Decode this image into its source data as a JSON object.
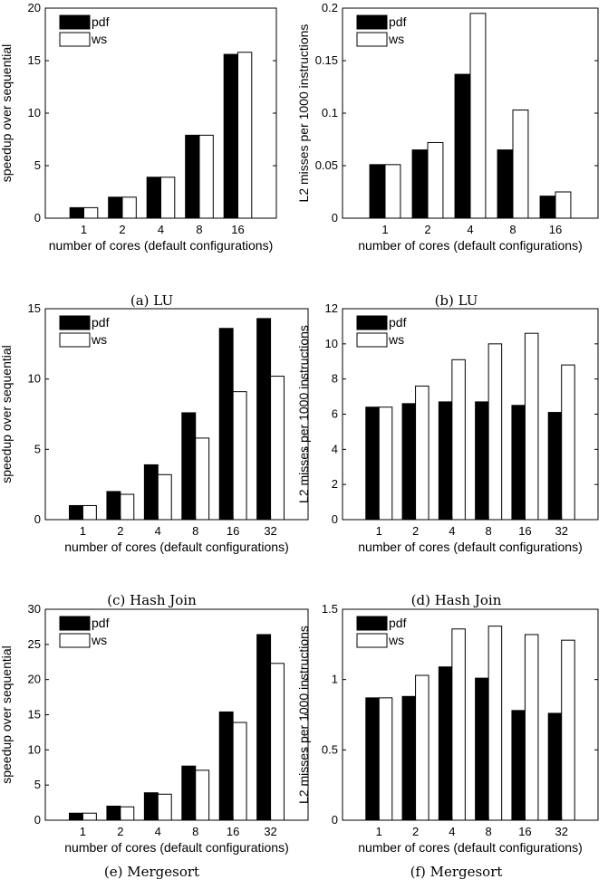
{
  "figure": {
    "panels": [
      {
        "caption": "(a) LU"
      },
      {
        "caption": "(b) LU"
      },
      {
        "caption": "(c) Hash Join"
      },
      {
        "caption": "(d) Hash Join"
      },
      {
        "caption": "(e) Mergesort"
      },
      {
        "caption": "(f) Mergesort"
      }
    ]
  },
  "colors": {
    "pdf": "#000000",
    "ws": "#ffffff",
    "edge": "#000000"
  },
  "chart_data": [
    {
      "type": "bar",
      "caption": "(a) LU",
      "categories": [
        "1",
        "2",
        "4",
        "8",
        "16"
      ],
      "series": [
        {
          "name": "pdf",
          "values": [
            1.0,
            2.0,
            3.9,
            7.9,
            15.6
          ]
        },
        {
          "name": "ws",
          "values": [
            1.0,
            2.0,
            3.9,
            7.9,
            15.8
          ]
        }
      ],
      "xlabel": "number of cores (default configurations)",
      "ylabel": "speedup over sequential",
      "ylim": [
        0,
        20
      ],
      "yticks": [
        "0",
        "5",
        "10",
        "15",
        "20"
      ],
      "legend": "top-left",
      "grid": false
    },
    {
      "type": "bar",
      "caption": "(b) LU",
      "categories": [
        "1",
        "2",
        "4",
        "8",
        "16"
      ],
      "series": [
        {
          "name": "pdf",
          "values": [
            0.051,
            0.065,
            0.137,
            0.065,
            0.021
          ]
        },
        {
          "name": "ws",
          "values": [
            0.051,
            0.072,
            0.195,
            0.103,
            0.025
          ]
        }
      ],
      "xlabel": "number of cores (default configurations)",
      "ylabel": "L2 misses per 1000 instructions",
      "ylim": [
        0,
        0.2
      ],
      "yticks": [
        "0",
        "0.05",
        "0.1",
        "0.15",
        "0.2"
      ],
      "legend": "top-left",
      "grid": false
    },
    {
      "type": "bar",
      "caption": "(c) Hash Join",
      "categories": [
        "1",
        "2",
        "4",
        "8",
        "16",
        "32"
      ],
      "series": [
        {
          "name": "pdf",
          "values": [
            1.0,
            2.0,
            3.9,
            7.6,
            13.6,
            14.3
          ]
        },
        {
          "name": "ws",
          "values": [
            1.0,
            1.8,
            3.2,
            5.8,
            9.1,
            10.2
          ]
        }
      ],
      "xlabel": "number of cores (default configurations)",
      "ylabel": "speedup over sequential",
      "ylim": [
        0,
        15
      ],
      "yticks": [
        "0",
        "5",
        "10",
        "15"
      ],
      "legend": "top-left",
      "grid": false
    },
    {
      "type": "bar",
      "caption": "(d) Hash Join",
      "categories": [
        "1",
        "2",
        "4",
        "8",
        "16",
        "32"
      ],
      "series": [
        {
          "name": "pdf",
          "values": [
            6.4,
            6.6,
            6.7,
            6.7,
            6.5,
            6.1
          ]
        },
        {
          "name": "ws",
          "values": [
            6.4,
            7.6,
            9.1,
            10.0,
            10.6,
            8.8
          ]
        }
      ],
      "xlabel": "number of cores (default configurations)",
      "ylabel": "L2 misses per 1000 instructions",
      "ylim": [
        0,
        12
      ],
      "yticks": [
        "0",
        "2",
        "4",
        "6",
        "8",
        "10",
        "12"
      ],
      "legend": "top-left",
      "grid": false
    },
    {
      "type": "bar",
      "caption": "(e) Mergesort",
      "categories": [
        "1",
        "2",
        "4",
        "8",
        "16",
        "32"
      ],
      "series": [
        {
          "name": "pdf",
          "values": [
            1.0,
            2.0,
            3.9,
            7.7,
            15.4,
            26.4
          ]
        },
        {
          "name": "ws",
          "values": [
            1.0,
            1.9,
            3.7,
            7.1,
            13.9,
            22.3
          ]
        }
      ],
      "xlabel": "number of cores (default configurations)",
      "ylabel": "speedup over sequential",
      "ylim": [
        0,
        30
      ],
      "yticks": [
        "0",
        "5",
        "10",
        "15",
        "20",
        "25",
        "30"
      ],
      "legend": "top-left",
      "grid": false
    },
    {
      "type": "bar",
      "caption": "(f) Mergesort",
      "categories": [
        "1",
        "2",
        "4",
        "8",
        "16",
        "32"
      ],
      "series": [
        {
          "name": "pdf",
          "values": [
            0.87,
            0.88,
            1.09,
            1.01,
            0.78,
            0.76
          ]
        },
        {
          "name": "ws",
          "values": [
            0.87,
            1.03,
            1.36,
            1.38,
            1.32,
            1.28
          ]
        }
      ],
      "xlabel": "number of cores (default configurations)",
      "ylabel": "L2 misses per 1000 instructions",
      "ylim": [
        0,
        1.5
      ],
      "yticks": [
        "0",
        "0.5",
        "1",
        "1.5"
      ],
      "legend": "top-left",
      "grid": false
    }
  ]
}
